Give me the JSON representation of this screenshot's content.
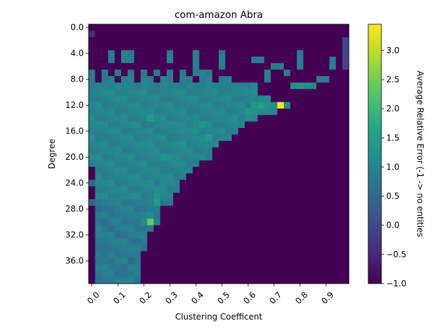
{
  "chart_data": {
    "type": "heatmap",
    "title": "com-amazon Abra",
    "xlabel": "Clustering Coefficent",
    "ylabel": "Degree",
    "colorbar_label": "Average Relative Error (-1 -> no entities",
    "x_ticks": [
      "0.0",
      "0.1",
      "0.2",
      "0.3",
      "0.4",
      "0.5",
      "0.6",
      "0.7",
      "0.8",
      "0.9"
    ],
    "y_ticks": [
      "0.0",
      "4.0",
      "8.0",
      "12.0",
      "16.0",
      "20.0",
      "24.0",
      "28.0",
      "32.0",
      "36.0"
    ],
    "colorbar_ticks": [
      "−1.0",
      "−0.5",
      "0.0",
      "0.5",
      "1.0",
      "1.5",
      "2.0",
      "2.5",
      "3.0"
    ],
    "colorbar_range": [
      -1.0,
      3.45
    ],
    "colormap": "viridis",
    "x_bins": 40,
    "y_bins": 40,
    "x_bin_width": 0.025,
    "y_bin_width": 1,
    "empty_value": -1.0,
    "cells": [
      [
        0,
        1,
        -0.4
      ],
      [
        39,
        2,
        -0.1
      ],
      [
        39,
        3,
        -0.1
      ],
      [
        39,
        4,
        -0.1
      ],
      [
        39,
        5,
        -0.1
      ],
      [
        39,
        6,
        -0.1
      ],
      [
        3,
        4,
        0.85
      ],
      [
        3,
        5,
        0.85
      ],
      [
        5,
        4,
        0.9
      ],
      [
        5,
        5,
        0.9
      ],
      [
        6,
        4,
        0.85
      ],
      [
        6,
        5,
        0.9
      ],
      [
        12,
        4,
        0.85
      ],
      [
        12,
        5,
        0.9
      ],
      [
        16,
        4,
        0.9
      ],
      [
        16,
        5,
        0.9
      ],
      [
        16,
        6,
        0.9
      ],
      [
        20,
        4,
        0.85
      ],
      [
        20,
        5,
        0.9
      ],
      [
        20,
        6,
        0.85
      ],
      [
        25,
        5,
        0.85
      ],
      [
        26,
        5,
        0.9
      ],
      [
        32,
        4,
        0.85
      ],
      [
        32,
        5,
        0.9
      ],
      [
        32,
        6,
        0.9
      ],
      [
        37,
        5,
        0.9
      ],
      [
        37,
        6,
        0.9
      ],
      [
        29,
        6,
        0.85
      ],
      [
        28,
        6,
        0.85
      ],
      [
        17,
        7,
        0.95
      ],
      [
        27,
        7,
        0.9
      ],
      [
        30,
        7,
        0.85
      ],
      [
        18,
        8,
        0.95
      ],
      [
        27,
        8,
        0.9
      ],
      [
        35,
        8,
        0.9
      ],
      [
        36,
        8,
        0.85
      ],
      [
        31,
        9,
        1.2
      ],
      [
        32,
        9,
        1.3
      ],
      [
        33,
        9,
        1.15
      ],
      [
        34,
        9,
        1.05
      ],
      [
        25,
        12,
        1.3
      ],
      [
        26,
        12,
        1.5
      ],
      [
        27,
        12,
        1.25
      ],
      [
        28,
        12,
        1.1
      ],
      [
        29,
        12,
        3.45
      ],
      [
        30,
        12,
        1.2
      ],
      [
        24,
        13,
        1.3
      ],
      [
        25,
        13,
        1.2
      ],
      [
        26,
        13,
        1.15
      ],
      [
        27,
        13,
        1.1
      ],
      [
        28,
        13,
        1.05
      ],
      [
        9,
        14,
        1.45
      ],
      [
        14,
        15,
        1.1
      ],
      [
        17,
        15,
        1.3
      ],
      [
        22,
        15,
        1.1
      ],
      [
        22,
        14,
        1.2
      ],
      [
        24,
        14,
        1.1
      ],
      [
        16,
        16,
        1.2
      ],
      [
        18,
        17,
        1.4
      ],
      [
        14,
        18,
        1.2
      ],
      [
        9,
        18,
        1.1
      ],
      [
        11,
        20,
        1.3
      ],
      [
        12,
        20,
        1.2
      ],
      [
        13,
        20,
        1.1
      ],
      [
        10,
        22,
        1.05
      ],
      [
        11,
        24,
        1.1
      ],
      [
        12,
        26,
        1.05
      ],
      [
        0,
        24,
        0.45
      ],
      [
        0,
        27,
        0.45
      ],
      [
        1,
        28,
        0.55
      ],
      [
        2,
        28,
        0.7
      ],
      [
        3,
        28,
        0.75
      ],
      [
        10,
        26,
        1.3
      ],
      [
        10,
        27,
        1.5
      ],
      [
        9,
        29,
        1.1
      ],
      [
        9,
        30,
        2.35
      ],
      [
        8,
        30,
        1.1
      ],
      [
        8,
        31,
        0.7
      ],
      [
        2,
        30,
        0.6
      ],
      [
        3,
        31,
        0.6
      ],
      [
        4,
        32,
        0.65
      ],
      [
        5,
        32,
        0.6
      ],
      [
        7,
        33,
        0.6
      ],
      [
        1,
        34,
        0.7
      ],
      [
        2,
        35,
        0.7
      ],
      [
        3,
        36,
        0.7
      ],
      [
        6,
        36,
        0.55
      ],
      [
        5,
        37,
        0.6
      ],
      [
        4,
        38,
        0.65
      ],
      [
        1,
        39,
        0.7
      ]
    ]
  }
}
